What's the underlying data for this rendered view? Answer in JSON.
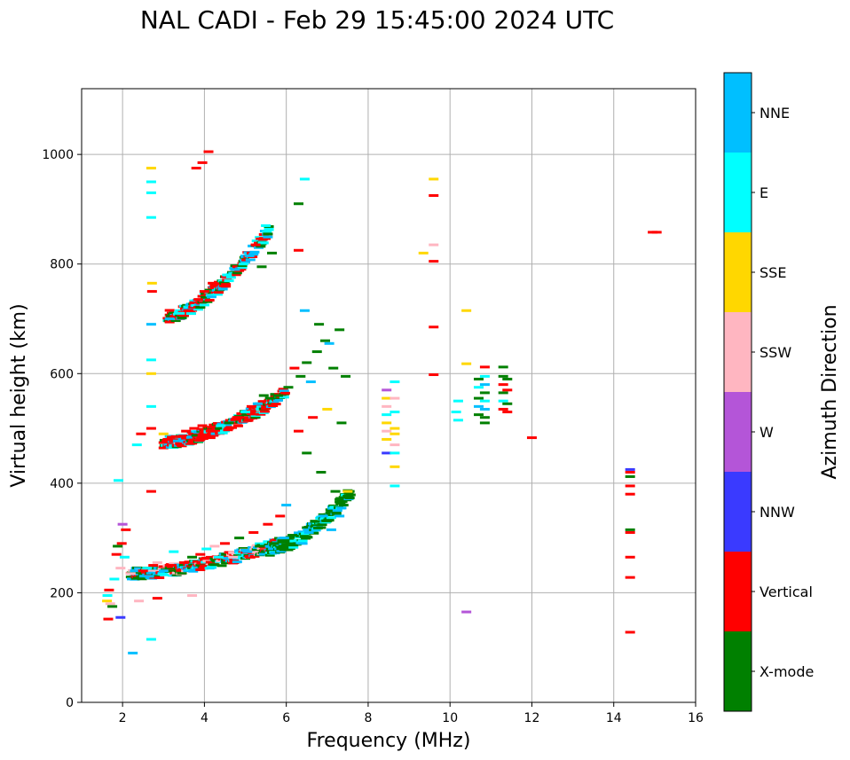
{
  "chart_data": {
    "type": "scatter",
    "title": "NAL CADI - Feb 29 15:45:00 2024 UTC",
    "xlabel": "Frequency (MHz)",
    "ylabel": "Virtual height (km)",
    "xlim": [
      1,
      16
    ],
    "ylim": [
      0,
      1120
    ],
    "xticks": [
      2,
      4,
      6,
      8,
      10,
      12,
      14,
      16
    ],
    "yticks": [
      0,
      200,
      400,
      600,
      800,
      1000
    ],
    "grid": true,
    "colorbar": {
      "label": "Azimuth Direction",
      "categories": [
        {
          "name": "X-mode",
          "color": "#008000"
        },
        {
          "name": "Vertical",
          "color": "#ff0000"
        },
        {
          "name": "NNW",
          "color": "#3a3aff"
        },
        {
          "name": "W",
          "color": "#b455d8"
        },
        {
          "name": "SSW",
          "color": "#ffb6c1"
        },
        {
          "name": "SSE",
          "color": "#ffd700"
        },
        {
          "name": "E",
          "color": "#00ffff"
        },
        {
          "name": "NNE",
          "color": "#00bfff"
        }
      ]
    },
    "points": [
      {
        "x": 1.65,
        "y": 152,
        "c": "Vertical"
      },
      {
        "x": 1.62,
        "y": 185,
        "c": "SSE"
      },
      {
        "x": 1.63,
        "y": 195,
        "c": "E"
      },
      {
        "x": 1.67,
        "y": 205,
        "c": "Vertical"
      },
      {
        "x": 1.7,
        "y": 180,
        "c": "SSW"
      },
      {
        "x": 1.75,
        "y": 175,
        "c": "X-mode"
      },
      {
        "x": 1.8,
        "y": 225,
        "c": "E"
      },
      {
        "x": 1.85,
        "y": 270,
        "c": "Vertical"
      },
      {
        "x": 1.88,
        "y": 285,
        "c": "X-mode"
      },
      {
        "x": 1.9,
        "y": 405,
        "c": "E"
      },
      {
        "x": 1.95,
        "y": 155,
        "c": "NNW"
      },
      {
        "x": 1.95,
        "y": 245,
        "c": "SSW"
      },
      {
        "x": 1.98,
        "y": 290,
        "c": "Vertical"
      },
      {
        "x": 2.0,
        "y": 325,
        "c": "W"
      },
      {
        "x": 2.05,
        "y": 265,
        "c": "E"
      },
      {
        "x": 2.08,
        "y": 315,
        "c": "Vertical"
      },
      {
        "x": 2.25,
        "y": 90,
        "c": "NNE"
      },
      {
        "x": 2.2,
        "y": 235,
        "c": "SSW"
      },
      {
        "x": 2.3,
        "y": 240,
        "c": "NNE"
      },
      {
        "x": 2.35,
        "y": 470,
        "c": "E"
      },
      {
        "x": 2.4,
        "y": 185,
        "c": "SSW"
      },
      {
        "x": 2.45,
        "y": 490,
        "c": "Vertical"
      },
      {
        "x": 2.5,
        "y": 240,
        "c": "Vertical"
      },
      {
        "x": 2.6,
        "y": 245,
        "c": "E"
      },
      {
        "x": 2.65,
        "y": 230,
        "c": "NNE"
      },
      {
        "x": 2.7,
        "y": 975,
        "c": "SSE"
      },
      {
        "x": 2.7,
        "y": 950,
        "c": "E"
      },
      {
        "x": 2.7,
        "y": 930,
        "c": "E"
      },
      {
        "x": 2.7,
        "y": 885,
        "c": "E"
      },
      {
        "x": 2.7,
        "y": 690,
        "c": "NNE"
      },
      {
        "x": 2.7,
        "y": 625,
        "c": "E"
      },
      {
        "x": 2.7,
        "y": 600,
        "c": "SSE"
      },
      {
        "x": 2.7,
        "y": 540,
        "c": "E"
      },
      {
        "x": 2.7,
        "y": 500,
        "c": "Vertical"
      },
      {
        "x": 2.7,
        "y": 385,
        "c": "Vertical"
      },
      {
        "x": 2.7,
        "y": 115,
        "c": "E"
      },
      {
        "x": 2.72,
        "y": 765,
        "c": "SSE"
      },
      {
        "x": 2.72,
        "y": 750,
        "c": "Vertical"
      },
      {
        "x": 2.75,
        "y": 250,
        "c": "Vertical"
      },
      {
        "x": 2.85,
        "y": 255,
        "c": "SSW"
      },
      {
        "x": 2.85,
        "y": 190,
        "c": "Vertical"
      },
      {
        "x": 3.0,
        "y": 240,
        "c": "NNE"
      },
      {
        "x": 3.0,
        "y": 490,
        "c": "SSE"
      },
      {
        "x": 3.1,
        "y": 480,
        "c": "Vertical"
      },
      {
        "x": 3.15,
        "y": 700,
        "c": "NNE"
      },
      {
        "x": 3.2,
        "y": 250,
        "c": "Vertical"
      },
      {
        "x": 3.25,
        "y": 275,
        "c": "E"
      },
      {
        "x": 3.3,
        "y": 485,
        "c": "Vertical"
      },
      {
        "x": 3.4,
        "y": 710,
        "c": "E"
      },
      {
        "x": 3.5,
        "y": 255,
        "c": "Vertical"
      },
      {
        "x": 3.55,
        "y": 495,
        "c": "Vertical"
      },
      {
        "x": 3.6,
        "y": 715,
        "c": "Vertical"
      },
      {
        "x": 3.7,
        "y": 265,
        "c": "X-mode"
      },
      {
        "x": 3.75,
        "y": 500,
        "c": "Vertical"
      },
      {
        "x": 3.7,
        "y": 195,
        "c": "SSW"
      },
      {
        "x": 3.8,
        "y": 975,
        "c": "Vertical"
      },
      {
        "x": 3.85,
        "y": 735,
        "c": "Vertical"
      },
      {
        "x": 3.9,
        "y": 270,
        "c": "Vertical"
      },
      {
        "x": 3.95,
        "y": 985,
        "c": "Vertical"
      },
      {
        "x": 3.95,
        "y": 505,
        "c": "Vertical"
      },
      {
        "x": 4.0,
        "y": 750,
        "c": "Vertical"
      },
      {
        "x": 4.05,
        "y": 280,
        "c": "E"
      },
      {
        "x": 4.1,
        "y": 1005,
        "c": "Vertical"
      },
      {
        "x": 4.15,
        "y": 495,
        "c": "Vertical"
      },
      {
        "x": 4.2,
        "y": 765,
        "c": "Vertical"
      },
      {
        "x": 4.25,
        "y": 285,
        "c": "SSW"
      },
      {
        "x": 4.35,
        "y": 265,
        "c": "E"
      },
      {
        "x": 4.4,
        "y": 505,
        "c": "E"
      },
      {
        "x": 4.5,
        "y": 290,
        "c": "Vertical"
      },
      {
        "x": 4.55,
        "y": 780,
        "c": "E"
      },
      {
        "x": 4.6,
        "y": 510,
        "c": "X-mode"
      },
      {
        "x": 4.7,
        "y": 265,
        "c": "SSW"
      },
      {
        "x": 4.75,
        "y": 790,
        "c": "NNE"
      },
      {
        "x": 4.8,
        "y": 520,
        "c": "Vertical"
      },
      {
        "x": 4.85,
        "y": 300,
        "c": "X-mode"
      },
      {
        "x": 4.95,
        "y": 800,
        "c": "E"
      },
      {
        "x": 5.0,
        "y": 530,
        "c": "E"
      },
      {
        "x": 5.05,
        "y": 275,
        "c": "NNE"
      },
      {
        "x": 5.1,
        "y": 815,
        "c": "NNE"
      },
      {
        "x": 5.15,
        "y": 540,
        "c": "Vertical"
      },
      {
        "x": 5.2,
        "y": 310,
        "c": "Vertical"
      },
      {
        "x": 5.25,
        "y": 835,
        "c": "Vertical"
      },
      {
        "x": 5.3,
        "y": 545,
        "c": "NNE"
      },
      {
        "x": 5.35,
        "y": 285,
        "c": "X-mode"
      },
      {
        "x": 5.4,
        "y": 795,
        "c": "X-mode"
      },
      {
        "x": 5.45,
        "y": 560,
        "c": "X-mode"
      },
      {
        "x": 5.5,
        "y": 870,
        "c": "E"
      },
      {
        "x": 5.55,
        "y": 325,
        "c": "Vertical"
      },
      {
        "x": 5.6,
        "y": 555,
        "c": "X-mode"
      },
      {
        "x": 5.65,
        "y": 820,
        "c": "X-mode"
      },
      {
        "x": 5.7,
        "y": 290,
        "c": "X-mode"
      },
      {
        "x": 5.8,
        "y": 560,
        "c": "X-mode"
      },
      {
        "x": 5.85,
        "y": 340,
        "c": "Vertical"
      },
      {
        "x": 5.95,
        "y": 300,
        "c": "NNE"
      },
      {
        "x": 6.0,
        "y": 360,
        "c": "NNE"
      },
      {
        "x": 6.05,
        "y": 575,
        "c": "X-mode"
      },
      {
        "x": 6.15,
        "y": 305,
        "c": "X-mode"
      },
      {
        "x": 6.2,
        "y": 610,
        "c": "Vertical"
      },
      {
        "x": 6.3,
        "y": 910,
        "c": "X-mode"
      },
      {
        "x": 6.3,
        "y": 825,
        "c": "Vertical"
      },
      {
        "x": 6.3,
        "y": 495,
        "c": "Vertical"
      },
      {
        "x": 6.35,
        "y": 595,
        "c": "X-mode"
      },
      {
        "x": 6.4,
        "y": 290,
        "c": "NNE"
      },
      {
        "x": 6.45,
        "y": 955,
        "c": "E"
      },
      {
        "x": 6.45,
        "y": 715,
        "c": "NNE"
      },
      {
        "x": 6.5,
        "y": 620,
        "c": "X-mode"
      },
      {
        "x": 6.5,
        "y": 455,
        "c": "X-mode"
      },
      {
        "x": 6.55,
        "y": 310,
        "c": "NNE"
      },
      {
        "x": 6.6,
        "y": 585,
        "c": "NNE"
      },
      {
        "x": 6.65,
        "y": 520,
        "c": "Vertical"
      },
      {
        "x": 6.7,
        "y": 330,
        "c": "X-mode"
      },
      {
        "x": 6.75,
        "y": 640,
        "c": "X-mode"
      },
      {
        "x": 6.8,
        "y": 690,
        "c": "X-mode"
      },
      {
        "x": 6.85,
        "y": 420,
        "c": "X-mode"
      },
      {
        "x": 6.9,
        "y": 340,
        "c": "NNE"
      },
      {
        "x": 6.95,
        "y": 660,
        "c": "X-mode"
      },
      {
        "x": 7.0,
        "y": 535,
        "c": "SSE"
      },
      {
        "x": 7.05,
        "y": 655,
        "c": "NNE"
      },
      {
        "x": 7.1,
        "y": 315,
        "c": "NNE"
      },
      {
        "x": 7.15,
        "y": 610,
        "c": "X-mode"
      },
      {
        "x": 7.2,
        "y": 385,
        "c": "X-mode"
      },
      {
        "x": 7.3,
        "y": 680,
        "c": "X-mode"
      },
      {
        "x": 7.3,
        "y": 340,
        "c": "NNE"
      },
      {
        "x": 7.35,
        "y": 510,
        "c": "X-mode"
      },
      {
        "x": 7.4,
        "y": 360,
        "c": "X-mode"
      },
      {
        "x": 7.45,
        "y": 595,
        "c": "X-mode"
      },
      {
        "x": 7.5,
        "y": 385,
        "c": "SSE"
      },
      {
        "x": 8.45,
        "y": 570,
        "c": "W"
      },
      {
        "x": 8.45,
        "y": 555,
        "c": "SSE"
      },
      {
        "x": 8.45,
        "y": 540,
        "c": "SSW"
      },
      {
        "x": 8.45,
        "y": 525,
        "c": "E"
      },
      {
        "x": 8.45,
        "y": 510,
        "c": "SSE"
      },
      {
        "x": 8.45,
        "y": 495,
        "c": "SSW"
      },
      {
        "x": 8.45,
        "y": 480,
        "c": "SSE"
      },
      {
        "x": 8.45,
        "y": 455,
        "c": "NNW"
      },
      {
        "x": 8.65,
        "y": 585,
        "c": "E"
      },
      {
        "x": 8.65,
        "y": 555,
        "c": "SSW"
      },
      {
        "x": 8.65,
        "y": 530,
        "c": "E"
      },
      {
        "x": 8.65,
        "y": 500,
        "c": "SSE"
      },
      {
        "x": 8.65,
        "y": 490,
        "c": "SSE"
      },
      {
        "x": 8.65,
        "y": 470,
        "c": "SSW"
      },
      {
        "x": 8.65,
        "y": 455,
        "c": "E"
      },
      {
        "x": 8.65,
        "y": 430,
        "c": "SSE"
      },
      {
        "x": 8.65,
        "y": 395,
        "c": "E"
      },
      {
        "x": 9.35,
        "y": 820,
        "c": "SSE"
      },
      {
        "x": 9.6,
        "y": 955,
        "c": "SSE"
      },
      {
        "x": 9.6,
        "y": 925,
        "c": "Vertical"
      },
      {
        "x": 9.6,
        "y": 835,
        "c": "SSW"
      },
      {
        "x": 9.6,
        "y": 805,
        "c": "Vertical"
      },
      {
        "x": 9.6,
        "y": 685,
        "c": "Vertical"
      },
      {
        "x": 9.6,
        "y": 598,
        "c": "Vertical"
      },
      {
        "x": 10.2,
        "y": 550,
        "c": "E"
      },
      {
        "x": 10.15,
        "y": 530,
        "c": "E"
      },
      {
        "x": 10.2,
        "y": 515,
        "c": "E"
      },
      {
        "x": 10.4,
        "y": 715,
        "c": "SSE"
      },
      {
        "x": 10.4,
        "y": 618,
        "c": "SSE"
      },
      {
        "x": 10.4,
        "y": 165,
        "c": "W"
      },
      {
        "x": 10.7,
        "y": 590,
        "c": "X-mode"
      },
      {
        "x": 10.7,
        "y": 575,
        "c": "E"
      },
      {
        "x": 10.7,
        "y": 555,
        "c": "X-mode"
      },
      {
        "x": 10.7,
        "y": 540,
        "c": "NNE"
      },
      {
        "x": 10.7,
        "y": 525,
        "c": "X-mode"
      },
      {
        "x": 10.85,
        "y": 595,
        "c": "E"
      },
      {
        "x": 10.85,
        "y": 580,
        "c": "NNE"
      },
      {
        "x": 10.85,
        "y": 565,
        "c": "X-mode"
      },
      {
        "x": 10.85,
        "y": 550,
        "c": "E"
      },
      {
        "x": 10.85,
        "y": 535,
        "c": "NNE"
      },
      {
        "x": 10.85,
        "y": 520,
        "c": "X-mode"
      },
      {
        "x": 10.85,
        "y": 510,
        "c": "X-mode"
      },
      {
        "x": 10.85,
        "y": 612,
        "c": "Vertical"
      },
      {
        "x": 11.3,
        "y": 612,
        "c": "X-mode"
      },
      {
        "x": 11.3,
        "y": 595,
        "c": "X-mode"
      },
      {
        "x": 11.3,
        "y": 580,
        "c": "Vertical"
      },
      {
        "x": 11.3,
        "y": 565,
        "c": "X-mode"
      },
      {
        "x": 11.3,
        "y": 550,
        "c": "E"
      },
      {
        "x": 11.3,
        "y": 535,
        "c": "Vertical"
      },
      {
        "x": 11.4,
        "y": 590,
        "c": "X-mode"
      },
      {
        "x": 11.4,
        "y": 570,
        "c": "Vertical"
      },
      {
        "x": 11.4,
        "y": 545,
        "c": "X-mode"
      },
      {
        "x": 11.4,
        "y": 530,
        "c": "Vertical"
      },
      {
        "x": 12.0,
        "y": 483,
        "c": "Vertical"
      },
      {
        "x": 14.4,
        "y": 425,
        "c": "NNW"
      },
      {
        "x": 14.4,
        "y": 420,
        "c": "Vertical"
      },
      {
        "x": 14.4,
        "y": 412,
        "c": "X-mode"
      },
      {
        "x": 14.4,
        "y": 395,
        "c": "Vertical"
      },
      {
        "x": 14.4,
        "y": 380,
        "c": "Vertical"
      },
      {
        "x": 14.4,
        "y": 315,
        "c": "X-mode"
      },
      {
        "x": 14.4,
        "y": 310,
        "c": "Vertical"
      },
      {
        "x": 14.4,
        "y": 265,
        "c": "Vertical"
      },
      {
        "x": 14.4,
        "y": 228,
        "c": "Vertical"
      },
      {
        "x": 14.4,
        "y": 128,
        "c": "Vertical"
      },
      {
        "x": 14.95,
        "y": 858,
        "c": "Vertical"
      },
      {
        "x": 15.05,
        "y": 858,
        "c": "Vertical"
      }
    ],
    "bands": [
      {
        "x0": 2.2,
        "x1": 6.0,
        "y0": 230,
        "y1": 290,
        "curve": "oblique",
        "colors": [
          "Vertical",
          "NNE",
          "E",
          "X-mode",
          "Vertical",
          "SSW",
          "X-mode",
          "NNE"
        ]
      },
      {
        "x0": 3.0,
        "x1": 6.0,
        "y0": 470,
        "y1": 560,
        "curve": "oblique",
        "colors": [
          "Vertical",
          "Vertical",
          "E",
          "X-mode",
          "Vertical",
          "NNE"
        ]
      },
      {
        "x0": 3.1,
        "x1": 5.6,
        "y0": 700,
        "y1": 860,
        "curve": "oblique",
        "colors": [
          "Vertical",
          "E",
          "Vertical",
          "NNE",
          "X-mode"
        ]
      },
      {
        "x0": 5.6,
        "x1": 7.6,
        "y0": 275,
        "y1": 380,
        "curve": "oblique",
        "colors": [
          "X-mode",
          "NNE",
          "X-mode",
          "E",
          "X-mode"
        ]
      }
    ]
  }
}
